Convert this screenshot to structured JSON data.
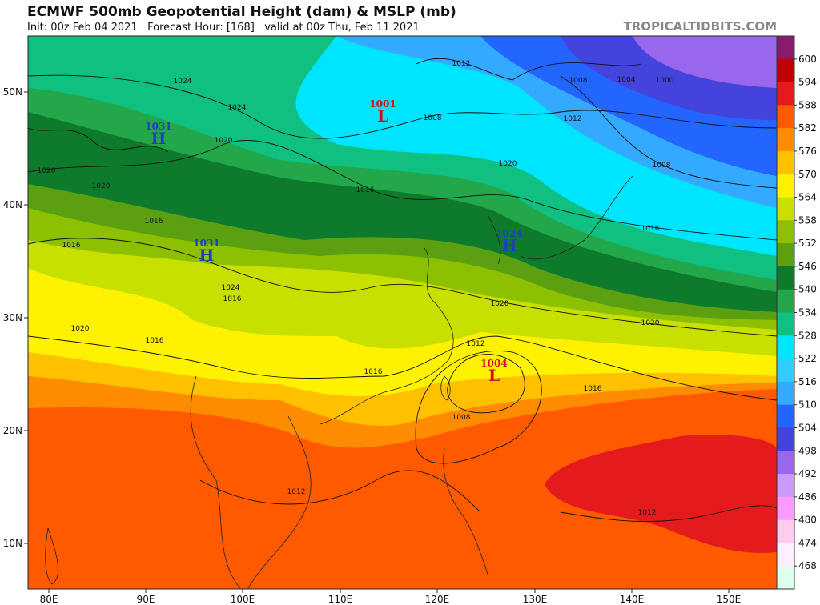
{
  "header": {
    "title": "ECMWF 500mb Geopotential Height (dam) & MSLP (mb)",
    "subtitle": "Init: 00z Feb 04 2021   Forecast Hour: [168]   valid at 00z Thu, Feb 11 2021",
    "brand": "TROPICALTIDBITS.COM"
  },
  "map": {
    "lat_labels": [
      "50N",
      "40N",
      "30N",
      "20N",
      "10N"
    ],
    "lon_labels": [
      "80E",
      "90E",
      "100E",
      "110E",
      "120E",
      "130E",
      "140E",
      "150E"
    ],
    "pressure_centers": [
      {
        "kind": "H",
        "value": 1031,
        "color": "#1f3fbf"
      },
      {
        "kind": "L",
        "value": 1001,
        "color": "#d01010"
      },
      {
        "kind": "H",
        "value": 1031,
        "color": "#1f3fbf"
      },
      {
        "kind": "H",
        "value": 1024,
        "color": "#1f3fbf"
      },
      {
        "kind": "L",
        "value": 1004,
        "color": "#d01010"
      }
    ],
    "isobar_labels": [
      1012,
      1024,
      1024,
      1020,
      1020,
      1020,
      1016,
      1016,
      1020,
      1016,
      1016,
      1020,
      1020,
      1016,
      1012,
      1008,
      1012,
      1012,
      1008,
      1004,
      1000,
      1012,
      1008,
      1016,
      1016,
      1008,
      1020,
      1024,
      1016
    ]
  },
  "colorbar": {
    "labels": [
      600,
      594,
      588,
      582,
      576,
      570,
      564,
      558,
      552,
      546,
      540,
      534,
      528,
      522,
      516,
      510,
      504,
      498,
      492,
      486,
      480,
      474,
      468
    ],
    "colors": [
      "#8b1a6b",
      "#c00000",
      "#e41a1c",
      "#ff5a00",
      "#ff8c00",
      "#ffc000",
      "#fff200",
      "#c8e000",
      "#8cc000",
      "#5aa010",
      "#0e7a2c",
      "#22a84a",
      "#10c080",
      "#00e5ff",
      "#33ccff",
      "#33aaff",
      "#2266ff",
      "#4444dd",
      "#9966ee",
      "#cc99ff",
      "#ff99ff",
      "#ffccee",
      "#ffeeff",
      "#ddffee"
    ]
  }
}
